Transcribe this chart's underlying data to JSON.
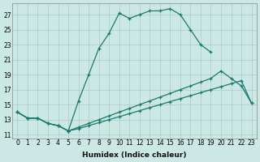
{
  "bg_color": "#cce8e5",
  "grid_color": "#aaccc8",
  "line_color": "#1a7a6e",
  "xlabel": "Humidex (Indice chaleur)",
  "xlim": [
    -0.5,
    23.5
  ],
  "ylim": [
    10.5,
    28.5
  ],
  "yticks": [
    11,
    13,
    15,
    17,
    19,
    21,
    23,
    25,
    27
  ],
  "xticks": [
    0,
    1,
    2,
    3,
    4,
    5,
    6,
    7,
    8,
    9,
    10,
    11,
    12,
    13,
    14,
    15,
    16,
    17,
    18,
    19,
    20,
    21,
    22,
    23
  ],
  "line1_x": [
    0,
    1,
    2,
    3,
    4,
    5,
    6,
    7,
    8,
    9,
    10,
    11,
    12,
    13,
    14,
    15,
    16,
    17,
    18,
    19
  ],
  "line1_y": [
    14.0,
    13.2,
    13.2,
    12.5,
    12.2,
    11.5,
    15.5,
    19.0,
    22.5,
    24.5,
    27.2,
    26.5,
    27.0,
    27.5,
    27.5,
    27.8,
    27.0,
    25.0,
    23.0,
    22.0
  ],
  "line2_x": [
    0,
    1,
    2,
    3,
    4,
    5,
    6,
    7,
    8,
    9,
    10,
    11,
    12,
    13,
    14,
    15,
    16,
    17,
    18,
    19,
    20,
    21,
    22,
    23
  ],
  "line2_y": [
    14.0,
    13.2,
    13.2,
    12.5,
    12.2,
    11.5,
    12.0,
    12.5,
    13.0,
    13.5,
    14.0,
    14.5,
    15.0,
    15.5,
    16.0,
    16.5,
    17.0,
    17.5,
    18.0,
    18.5,
    19.5,
    18.5,
    17.5,
    15.2
  ],
  "line3_x": [
    0,
    1,
    2,
    3,
    4,
    5,
    6,
    7,
    8,
    9,
    10,
    11,
    12,
    13,
    14,
    15,
    16,
    17,
    18,
    19,
    20,
    21,
    22,
    23
  ],
  "line3_y": [
    14.0,
    13.2,
    13.2,
    12.5,
    12.2,
    11.5,
    11.8,
    12.2,
    12.6,
    13.0,
    13.4,
    13.8,
    14.2,
    14.6,
    15.0,
    15.4,
    15.8,
    16.2,
    16.6,
    17.0,
    17.4,
    17.8,
    18.2,
    15.2
  ],
  "xlabel_fontsize": 6.5,
  "tick_fontsize": 5.5
}
